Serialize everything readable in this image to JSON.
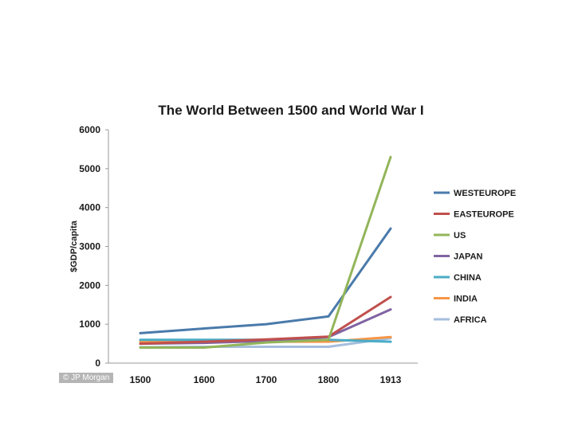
{
  "chart_data": {
    "type": "line",
    "title": "The World Between 1500 and World War I",
    "ylabel": "$GDP/capita",
    "xlabel": "",
    "categories": [
      "1500",
      "1600",
      "1700",
      "1800",
      "1913"
    ],
    "ylim": [
      0,
      6000
    ],
    "yticks": [
      0,
      1000,
      2000,
      3000,
      4000,
      5000,
      6000
    ],
    "grid": false,
    "legend_position": "right",
    "series": [
      {
        "name": "WestEurope",
        "color": "#4a7aab",
        "values": [
          770,
          890,
          1000,
          1200,
          3460
        ]
      },
      {
        "name": "EastEurope",
        "color": "#c0504d",
        "values": [
          500,
          550,
          610,
          680,
          1700
        ]
      },
      {
        "name": "US",
        "color": "#93b55a",
        "values": [
          400,
          400,
          530,
          600,
          5300
        ]
      },
      {
        "name": "Japan",
        "color": "#8064a2",
        "values": [
          500,
          520,
          570,
          670,
          1380
        ]
      },
      {
        "name": "China",
        "color": "#4aacc6",
        "values": [
          600,
          600,
          600,
          600,
          550
        ]
      },
      {
        "name": "India",
        "color": "#f79646",
        "values": [
          550,
          550,
          550,
          550,
          670
        ]
      },
      {
        "name": "Africa",
        "color": "#a5bedd",
        "values": [
          410,
          420,
          420,
          420,
          640
        ]
      }
    ]
  },
  "credit": "© JP Morgan"
}
